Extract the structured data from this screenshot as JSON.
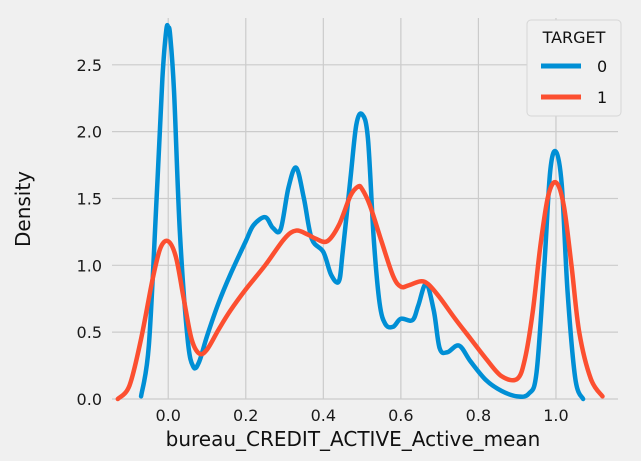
{
  "chart_data": {
    "type": "line",
    "title": "",
    "xlabel": "bureau_CREDIT_ACTIVE_Active_mean",
    "ylabel": "Density",
    "xlim": [
      -0.145,
      1.16
    ],
    "ylim": [
      0,
      2.85
    ],
    "xticks": [
      0.0,
      0.2,
      0.4,
      0.6,
      0.8,
      1.0
    ],
    "xtick_labels": [
      "0.0",
      "0.2",
      "0.4",
      "0.6",
      "0.8",
      "1.0"
    ],
    "yticks": [
      0.0,
      0.5,
      1.0,
      1.5,
      2.0,
      2.5
    ],
    "ytick_labels": [
      "0.0",
      "0.5",
      "1.0",
      "1.5",
      "2.0",
      "2.5"
    ],
    "grid": true,
    "background": "#f0f0f0",
    "grid_color": "#cbcbcb",
    "legend": {
      "title": "TARGET",
      "placement": "top-right"
    },
    "series": [
      {
        "name": "0",
        "color": "#008fd5",
        "x": [
          -0.07,
          -0.05,
          -0.03,
          -0.015,
          -0.005,
          0.0,
          0.005,
          0.015,
          0.03,
          0.05,
          0.065,
          0.08,
          0.1,
          0.13,
          0.16,
          0.2,
          0.22,
          0.25,
          0.27,
          0.29,
          0.31,
          0.33,
          0.35,
          0.37,
          0.4,
          0.42,
          0.44,
          0.45,
          0.47,
          0.485,
          0.5,
          0.515,
          0.53,
          0.545,
          0.56,
          0.58,
          0.6,
          0.63,
          0.645,
          0.665,
          0.685,
          0.7,
          0.72,
          0.75,
          0.78,
          0.82,
          0.86,
          0.9,
          0.93,
          0.95,
          0.97,
          0.985,
          1.0,
          1.015,
          1.03,
          1.05,
          1.07
        ],
        "values": [
          0.02,
          0.4,
          1.5,
          2.4,
          2.76,
          2.78,
          2.72,
          2.3,
          1.25,
          0.45,
          0.24,
          0.28,
          0.47,
          0.72,
          0.93,
          1.18,
          1.3,
          1.36,
          1.28,
          1.27,
          1.58,
          1.73,
          1.5,
          1.2,
          1.1,
          0.93,
          0.88,
          1.1,
          1.65,
          2.05,
          2.13,
          1.95,
          1.2,
          0.72,
          0.56,
          0.54,
          0.6,
          0.59,
          0.7,
          0.86,
          0.66,
          0.38,
          0.35,
          0.4,
          0.28,
          0.14,
          0.06,
          0.02,
          0.04,
          0.2,
          1.0,
          1.7,
          1.85,
          1.6,
          0.8,
          0.15,
          0.0
        ]
      },
      {
        "name": "1",
        "color": "#fc4f30",
        "x": [
          -0.13,
          -0.1,
          -0.07,
          -0.04,
          -0.02,
          0.0,
          0.02,
          0.04,
          0.06,
          0.08,
          0.1,
          0.13,
          0.16,
          0.2,
          0.25,
          0.3,
          0.33,
          0.36,
          0.38,
          0.41,
          0.44,
          0.47,
          0.49,
          0.5,
          0.52,
          0.55,
          0.58,
          0.6,
          0.62,
          0.65,
          0.67,
          0.7,
          0.74,
          0.78,
          0.82,
          0.86,
          0.9,
          0.92,
          0.94,
          0.96,
          0.98,
          1.0,
          1.02,
          1.04,
          1.06,
          1.09,
          1.12
        ],
        "values": [
          0.0,
          0.1,
          0.45,
          0.9,
          1.13,
          1.18,
          1.06,
          0.75,
          0.45,
          0.34,
          0.37,
          0.52,
          0.66,
          0.82,
          1.0,
          1.2,
          1.26,
          1.23,
          1.2,
          1.18,
          1.3,
          1.52,
          1.59,
          1.57,
          1.45,
          1.18,
          0.92,
          0.84,
          0.85,
          0.88,
          0.86,
          0.76,
          0.6,
          0.45,
          0.3,
          0.17,
          0.15,
          0.3,
          0.65,
          1.15,
          1.52,
          1.62,
          1.45,
          1.0,
          0.5,
          0.15,
          0.02
        ]
      }
    ]
  }
}
